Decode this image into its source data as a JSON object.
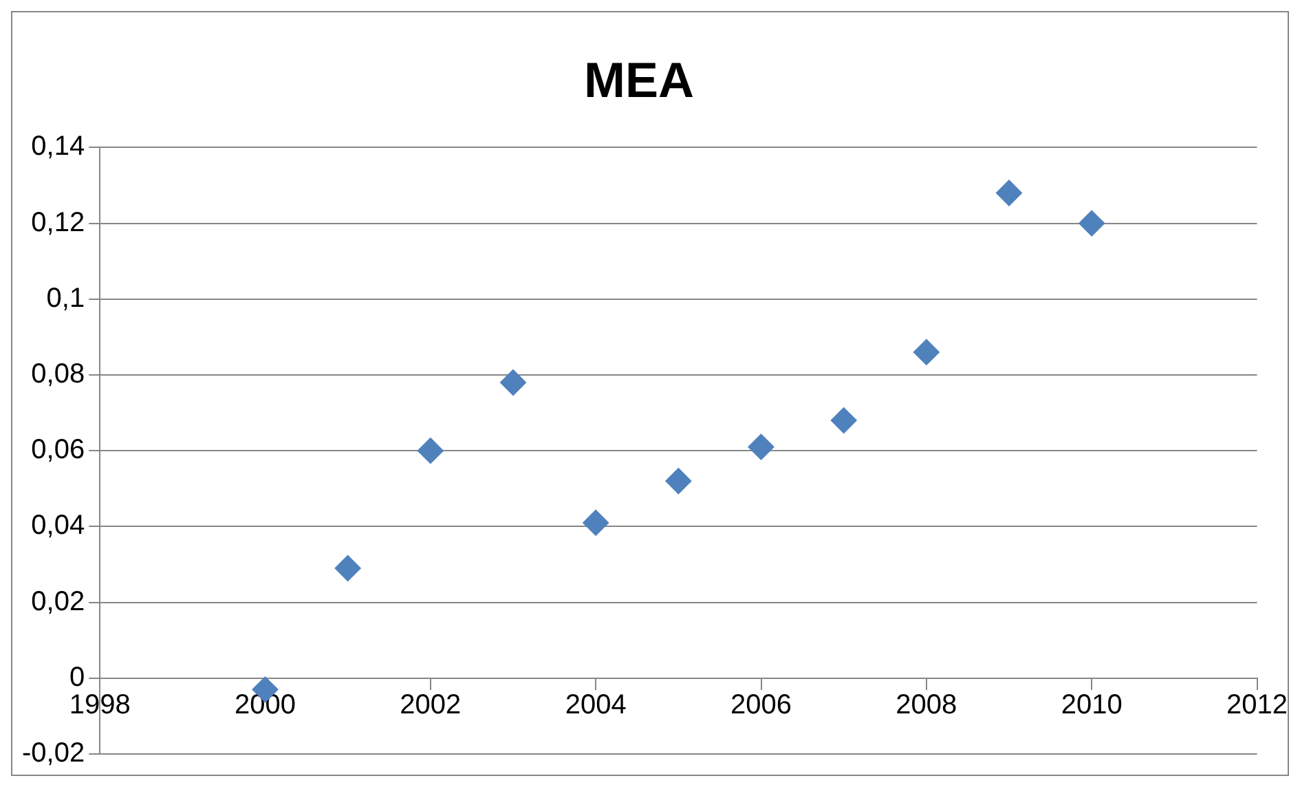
{
  "chart_data": {
    "type": "scatter",
    "title": "MEA",
    "x": [
      2000,
      2001,
      2002,
      2003,
      2004,
      2005,
      2006,
      2007,
      2008,
      2009,
      2010
    ],
    "values": [
      -0.003,
      0.029,
      0.06,
      0.078,
      0.041,
      0.052,
      0.061,
      0.068,
      0.086,
      0.128,
      0.12
    ],
    "color": "#4f81bd",
    "marker": "diamond",
    "grid": "y",
    "legend": false,
    "xlim": [
      1998,
      2012
    ],
    "xticks": [
      1998,
      2000,
      2002,
      2004,
      2006,
      2008,
      2010,
      2012
    ],
    "ylim": [
      -0.02,
      0.14
    ],
    "yticks": [
      {
        "value": -0.02,
        "label": "-0,02"
      },
      {
        "value": 0,
        "label": "0"
      },
      {
        "value": 0.02,
        "label": "0,02"
      },
      {
        "value": 0.04,
        "label": "0,04"
      },
      {
        "value": 0.06,
        "label": "0,06"
      },
      {
        "value": 0.08,
        "label": "0,08"
      },
      {
        "value": 0.1,
        "label": "0,1"
      },
      {
        "value": 0.12,
        "label": "0,12"
      },
      {
        "value": 0.14,
        "label": "0,14"
      }
    ]
  }
}
